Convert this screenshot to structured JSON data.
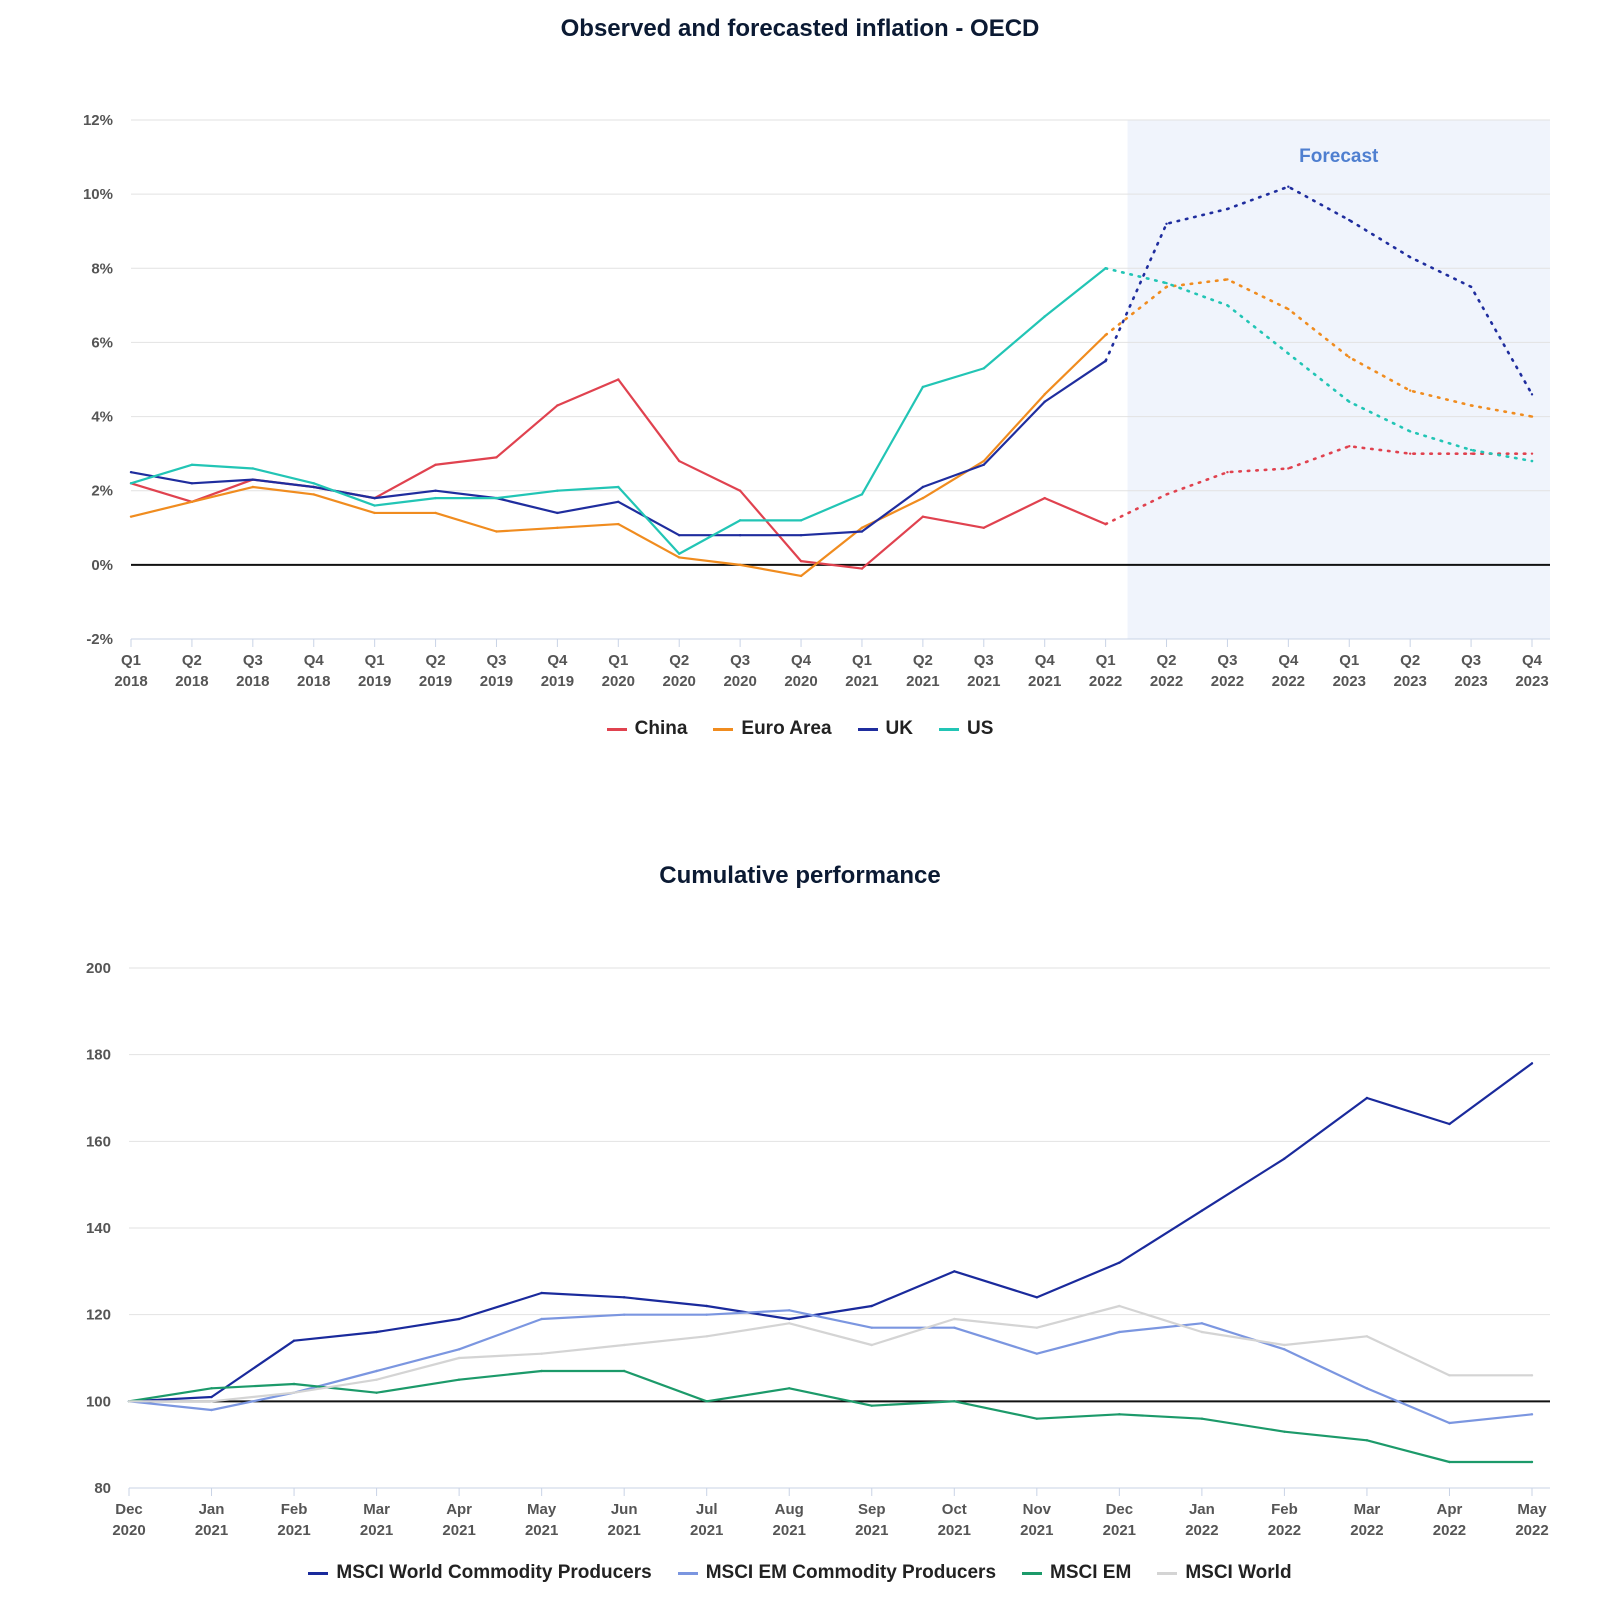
{
  "chart_data": [
    {
      "type": "line",
      "title": "Observed and forecasted inflation - OECD",
      "xlabel": "",
      "ylabel": "",
      "x": [
        "Q1 2018",
        "Q2 2018",
        "Q3 2018",
        "Q4 2018",
        "Q1 2019",
        "Q2 2019",
        "Q3 2019",
        "Q4 2019",
        "Q1 2020",
        "Q2 2020",
        "Q3 2020",
        "Q4 2020",
        "Q1 2021",
        "Q2 2021",
        "Q3 2021",
        "Q4 2021",
        "Q1 2022",
        "Q2 2022",
        "Q3 2022",
        "Q4 2022",
        "Q1 2023",
        "Q2 2023",
        "Q3 2023",
        "Q4 2023"
      ],
      "ylim": [
        -2,
        12
      ],
      "yticks": [
        "-2%",
        "0%",
        "2%",
        "4%",
        "6%",
        "8%",
        "10%",
        "12%"
      ],
      "grid": true,
      "legend_position": "bottom",
      "forecast_region": {
        "label": "Forecast",
        "start": "Q1 2022",
        "end": "Q4 2023"
      },
      "series": [
        {
          "name": "China",
          "color": "#e0424f",
          "values": [
            2.2,
            1.7,
            2.3,
            2.1,
            1.8,
            2.7,
            2.9,
            4.3,
            5.0,
            2.8,
            2.0,
            0.1,
            -0.1,
            1.3,
            1.0,
            1.8,
            1.1,
            1.9,
            2.5,
            2.6,
            3.2,
            3.0,
            3.0,
            3.0
          ],
          "forecast_from_index": 16
        },
        {
          "name": "Euro Area",
          "color": "#f08c1f",
          "values": [
            1.3,
            1.7,
            2.1,
            1.9,
            1.4,
            1.4,
            0.9,
            1.0,
            1.1,
            0.2,
            0.0,
            -0.3,
            1.0,
            1.8,
            2.8,
            4.6,
            6.2,
            7.5,
            7.7,
            6.9,
            5.6,
            4.7,
            4.3,
            4.0
          ],
          "forecast_from_index": 16
        },
        {
          "name": "UK",
          "color": "#1f2d9e",
          "values": [
            2.5,
            2.2,
            2.3,
            2.1,
            1.8,
            2.0,
            1.8,
            1.4,
            1.7,
            0.8,
            0.8,
            0.8,
            0.9,
            2.1,
            2.7,
            4.4,
            5.5,
            9.2,
            9.6,
            10.2,
            9.3,
            8.3,
            7.5,
            4.6
          ],
          "forecast_from_index": 16
        },
        {
          "name": "US",
          "color": "#22c5b5",
          "values": [
            2.2,
            2.7,
            2.6,
            2.2,
            1.6,
            1.8,
            1.8,
            2.0,
            2.1,
            0.3,
            1.2,
            1.2,
            1.9,
            4.8,
            5.3,
            6.7,
            8.0,
            7.6,
            7.0,
            5.7,
            4.4,
            3.6,
            3.1,
            2.8
          ],
          "forecast_from_index": 16
        }
      ]
    },
    {
      "type": "line",
      "title": "Cumulative performance",
      "xlabel": "",
      "ylabel": "",
      "x": [
        "Dec 2020",
        "Jan 2021",
        "Feb 2021",
        "Mar 2021",
        "Apr 2021",
        "May 2021",
        "Jun 2021",
        "Jul 2021",
        "Aug 2021",
        "Sep 2021",
        "Oct 2021",
        "Nov 2021",
        "Dec 2021",
        "Jan 2022",
        "Feb 2022",
        "Mar 2022",
        "Apr 2022",
        "May 2022"
      ],
      "ylim": [
        80,
        200
      ],
      "yticks": [
        "80",
        "100",
        "120",
        "140",
        "160",
        "180",
        "200"
      ],
      "grid": true,
      "legend_position": "bottom",
      "series": [
        {
          "name": "MSCI World Commodity Producers",
          "color": "#1a2a9c",
          "values": [
            100,
            101,
            114,
            116,
            119,
            125,
            124,
            122,
            119,
            122,
            130,
            124,
            132,
            144,
            156,
            170,
            164,
            178
          ]
        },
        {
          "name": "MSCI EM Commodity Producers",
          "color": "#7b96e0",
          "values": [
            100,
            98,
            102,
            107,
            112,
            119,
            120,
            120,
            121,
            117,
            117,
            111,
            116,
            118,
            112,
            103,
            95,
            97
          ]
        },
        {
          "name": "MSCI EM",
          "color": "#1c9a6a",
          "values": [
            100,
            103,
            104,
            102,
            105,
            107,
            107,
            100,
            103,
            99,
            100,
            96,
            97,
            96,
            93,
            91,
            86,
            86
          ]
        },
        {
          "name": "MSCI World",
          "color": "#d4d4d4",
          "values": [
            100,
            100,
            102,
            105,
            110,
            111,
            113,
            115,
            118,
            113,
            119,
            117,
            122,
            116,
            113,
            115,
            106,
            106
          ]
        }
      ]
    }
  ]
}
